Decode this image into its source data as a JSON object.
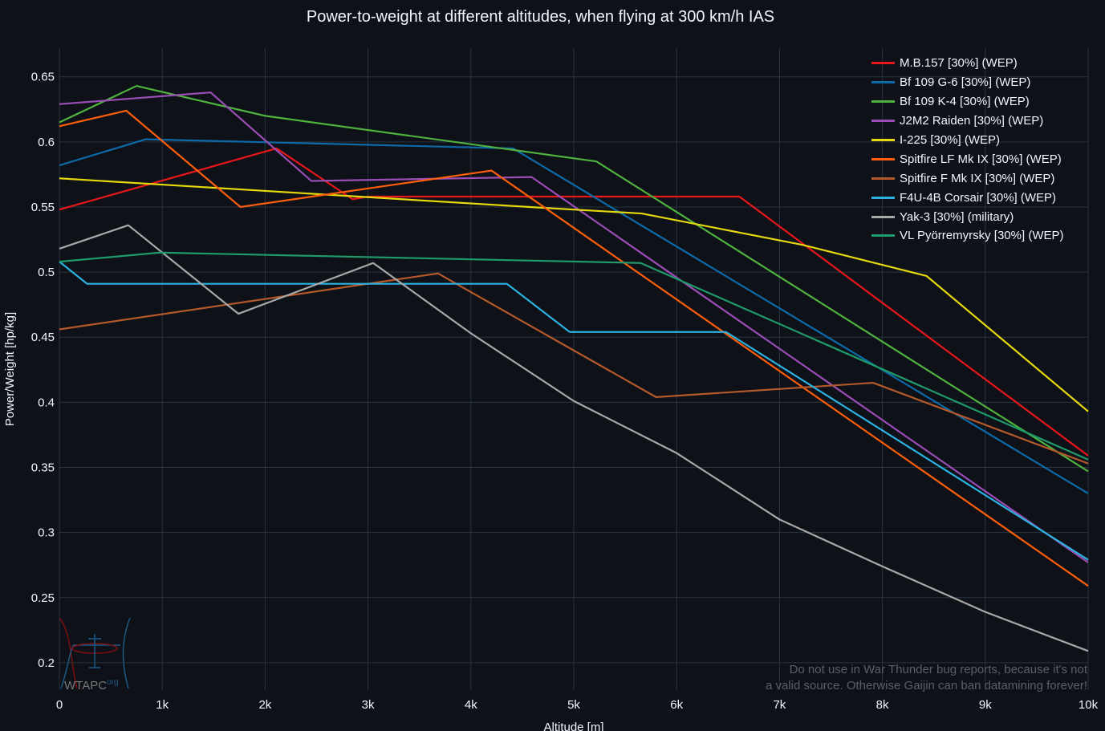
{
  "chart_data": {
    "type": "line",
    "title": "Power-to-weight at different altitudes, when flying at 300 km/h IAS",
    "xlabel": "Altitude [m]",
    "ylabel": "Power/Weight [hp/kg]",
    "xlim": [
      0,
      10000
    ],
    "ylim": [
      0.179,
      0.672
    ],
    "xticks": [
      0,
      1000,
      2000,
      3000,
      4000,
      5000,
      6000,
      7000,
      8000,
      9000,
      10000
    ],
    "xtick_labels": [
      "0",
      "1k",
      "2k",
      "3k",
      "4k",
      "5k",
      "6k",
      "7k",
      "8k",
      "9k",
      "10k"
    ],
    "yticks": [
      0.2,
      0.25,
      0.3,
      0.35,
      0.4,
      0.45,
      0.5,
      0.55,
      0.6,
      0.65
    ],
    "ytick_labels": [
      "0.2",
      "0.25",
      "0.3",
      "0.35",
      "0.4",
      "0.45",
      "0.5",
      "0.55",
      "0.6",
      "0.65"
    ],
    "grid": true,
    "legend_position": "top-right",
    "series": [
      {
        "name": "M.B.157 [30%] (WEP)",
        "color": "#e8171b",
        "x": [
          0,
          2110,
          2850,
          3000,
          6610,
          10000
        ],
        "y": [
          0.548,
          0.595,
          0.556,
          0.558,
          0.558,
          0.359
        ]
      },
      {
        "name": "Bf 109 G-6 [30%] (WEP)",
        "color": "#0d6aa8",
        "x": [
          0,
          840,
          4410,
          10000
        ],
        "y": [
          0.582,
          0.602,
          0.595,
          0.33
        ]
      },
      {
        "name": "Bf 109 K-4 [30%] (WEP)",
        "color": "#4fb13f",
        "x": [
          0,
          750,
          2000,
          5220,
          10000
        ],
        "y": [
          0.615,
          0.643,
          0.62,
          0.585,
          0.347
        ]
      },
      {
        "name": "J2M2 Raiden [30%] (WEP)",
        "color": "#9b4db6",
        "x": [
          0,
          1470,
          2450,
          4590,
          10000
        ],
        "y": [
          0.629,
          0.638,
          0.57,
          0.573,
          0.277
        ]
      },
      {
        "name": "I-225 [30%] (WEP)",
        "color": "#e6d80f",
        "x": [
          0,
          4570,
          5660,
          7220,
          8430,
          10000
        ],
        "y": [
          0.572,
          0.55,
          0.545,
          0.521,
          0.497,
          0.393
        ]
      },
      {
        "name": "Spitfire LF Mk IX [30%] (WEP)",
        "color": "#ff5f0a",
        "x": [
          0,
          650,
          1760,
          4200,
          10000
        ],
        "y": [
          0.612,
          0.624,
          0.55,
          0.578,
          0.259
        ]
      },
      {
        "name": "Spitfire F Mk IX [30%] (WEP)",
        "color": "#b3592b",
        "x": [
          0,
          3680,
          5800,
          7910,
          10000
        ],
        "y": [
          0.456,
          0.499,
          0.404,
          0.415,
          0.353
        ]
      },
      {
        "name": "F4U-4B Corsair [30%] (WEP)",
        "color": "#2bb2e0",
        "x": [
          0,
          270,
          4350,
          4960,
          6480,
          10000
        ],
        "y": [
          0.508,
          0.491,
          0.491,
          0.454,
          0.454,
          0.279
        ]
      },
      {
        "name": "Yak-3 [30%] (military)",
        "color": "#a8a8a8",
        "x": [
          0,
          670,
          1740,
          3050,
          4000,
          5000,
          6000,
          7000,
          8000,
          9000,
          10000
        ],
        "y": [
          0.518,
          0.536,
          0.468,
          0.507,
          0.453,
          0.401,
          0.361,
          0.31,
          0.274,
          0.239,
          0.209
        ]
      },
      {
        "name": "VL Pyörremyrsky [30%] (WEP)",
        "color": "#1f9a6a",
        "x": [
          0,
          980,
          5650,
          10000
        ],
        "y": [
          0.508,
          0.515,
          0.507,
          0.356
        ]
      }
    ]
  },
  "note": [
    "Do not use in War Thunder bug reports, because it's not",
    "a valid source. Otherwise Gaijin can ban datamining forever!"
  ],
  "watermark": {
    "text": "WTAPC",
    "sup": "org"
  }
}
